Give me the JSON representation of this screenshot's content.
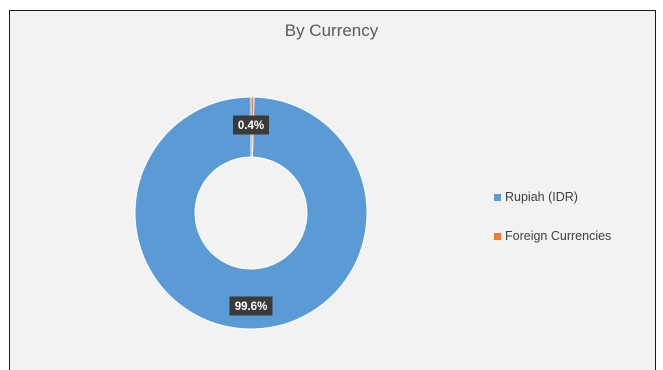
{
  "chart_data": {
    "type": "pie",
    "variant": "doughnut",
    "title": "By Currency",
    "categories": [
      "Rupiah (IDR)",
      "Foreign Currencies"
    ],
    "values": [
      99.6,
      0.4
    ],
    "data_labels": [
      "99.6%",
      "0.4%"
    ],
    "colors": [
      "#5b9bd5",
      "#ed7d31"
    ],
    "legend_position": "right"
  }
}
